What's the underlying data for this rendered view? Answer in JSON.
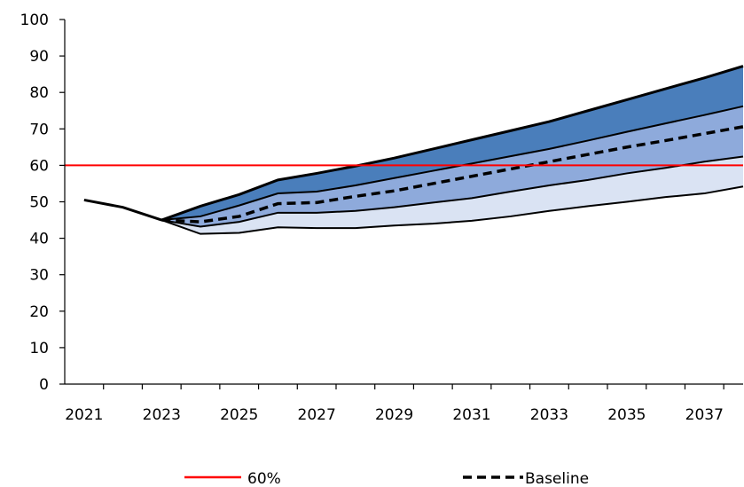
{
  "chart_data": {
    "type": "area",
    "title": "",
    "xlabel": "",
    "ylabel": "",
    "ylim": [
      0,
      100
    ],
    "yticks": [
      0,
      10,
      20,
      30,
      40,
      50,
      60,
      70,
      80,
      90,
      100
    ],
    "xtick_labels": [
      "2021",
      "2023",
      "2025",
      "2027",
      "2029",
      "2031",
      "2033",
      "2035",
      "2037"
    ],
    "x": [
      2021,
      2022,
      2023,
      2024,
      2025,
      2026,
      2027,
      2028,
      2029,
      2030,
      2031,
      2032,
      2033,
      2034,
      2035,
      2036,
      2037,
      2038
    ],
    "history": {
      "x": [
        2021,
        2022,
        2023
      ],
      "values": [
        50.5,
        48.5,
        45
      ]
    },
    "fan_x": [
      2023,
      2024,
      2025,
      2026,
      2027,
      2028,
      2029,
      2030,
      2031,
      2032,
      2033,
      2034,
      2035,
      2036,
      2037,
      2038
    ],
    "bands": {
      "upper": [
        45,
        48.8,
        52,
        56,
        57.8,
        59.8,
        62,
        64.5,
        67,
        69.5,
        72,
        75,
        78,
        81,
        84,
        87.2
      ],
      "upper_mid": [
        45,
        46,
        49,
        52.3,
        52.8,
        54.5,
        56.5,
        58.5,
        60.5,
        62.5,
        64.5,
        66.8,
        69.2,
        71.5,
        73.8,
        76.2
      ],
      "baseline": [
        45,
        44.5,
        46,
        49.5,
        49.8,
        51.5,
        53,
        55,
        57,
        59,
        61,
        63,
        65,
        66.8,
        68.7,
        70.6
      ],
      "lower_mid": [
        45,
        43.2,
        44.5,
        47,
        47,
        47.5,
        48.5,
        49.8,
        51,
        52.8,
        54.5,
        56,
        57.8,
        59.3,
        61,
        62.4
      ],
      "lower": [
        45,
        41.2,
        41.5,
        43,
        42.8,
        42.8,
        43.5,
        44,
        44.8,
        46,
        47.5,
        48.8,
        50,
        51.3,
        52.3,
        54.2
      ]
    },
    "reference_line": {
      "value": 60,
      "label": "60%",
      "color": "#ff0000"
    },
    "series": [
      {
        "name": "60%",
        "style": "solid",
        "color": "#ff0000"
      },
      {
        "name": "Baseline",
        "style": "dashed",
        "color": "#000000"
      }
    ],
    "band_colors": [
      "#4a7ebb",
      "#8eaadb",
      "#dae3f3"
    ],
    "legend_position": "bottom",
    "grid": false
  }
}
